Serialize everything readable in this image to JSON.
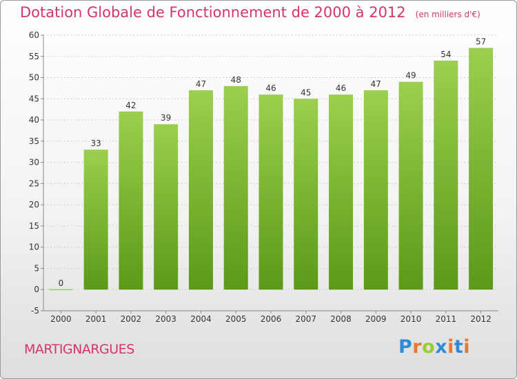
{
  "header": {
    "title": "Dotation Globale de Fonctionnement de 2000 à 2012",
    "unit": "(en milliers d'€)"
  },
  "footer": {
    "town": "MARTIGNARGUES",
    "brand": "Proxiti"
  },
  "colors": {
    "title": "#d6336c",
    "bar_top": "#9ccf4e",
    "bar_bottom": "#5a9a17",
    "zero_bar": "#a8d66a",
    "brand_letters": [
      "#2e8bd8",
      "#e8782c",
      "#9acd32",
      "#2e8bd8",
      "#e8782c",
      "#2e8bd8",
      "#e8782c"
    ]
  },
  "chart_data": {
    "type": "bar",
    "title": "Dotation Globale de Fonctionnement de 2000 à 2012",
    "subtitle": "(en milliers d'€)",
    "categories": [
      "2000",
      "2001",
      "2002",
      "2003",
      "2004",
      "2005",
      "2006",
      "2007",
      "2008",
      "2009",
      "2010",
      "2011",
      "2012"
    ],
    "values": [
      0,
      33,
      42,
      39,
      47,
      48,
      46,
      45,
      46,
      47,
      49,
      54,
      57
    ],
    "ylim": [
      -5,
      60
    ],
    "yticks": [
      -5,
      0,
      5,
      10,
      15,
      20,
      25,
      30,
      35,
      40,
      45,
      50,
      55,
      60
    ],
    "grid": true,
    "legend": "none"
  }
}
